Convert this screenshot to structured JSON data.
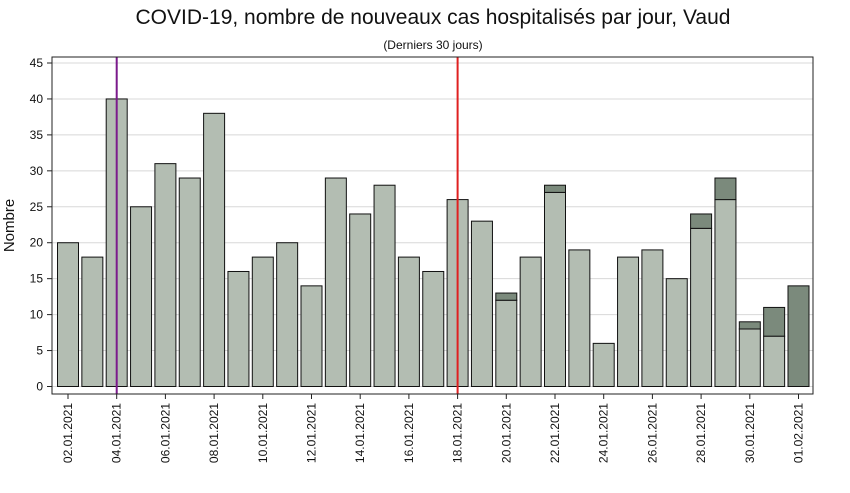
{
  "chart_data": {
    "type": "bar",
    "stacked": true,
    "title": "COVID-19, nombre de nouveaux cas hospitalisés par jour, Vaud",
    "subtitle": "(Derniers 30 jours)",
    "xlabel": "",
    "ylabel": "Nombre",
    "ylim": [
      0,
      45
    ],
    "yticks": [
      0,
      5,
      10,
      15,
      20,
      25,
      30,
      35,
      40,
      45
    ],
    "grid": true,
    "categories": [
      "02.01.2021",
      "03.01.2021",
      "04.01.2021",
      "05.01.2021",
      "06.01.2021",
      "07.01.2021",
      "08.01.2021",
      "09.01.2021",
      "10.01.2021",
      "11.01.2021",
      "12.01.2021",
      "13.01.2021",
      "14.01.2021",
      "15.01.2021",
      "16.01.2021",
      "17.01.2021",
      "18.01.2021",
      "19.01.2021",
      "20.01.2021",
      "21.01.2021",
      "22.01.2021",
      "23.01.2021",
      "24.01.2021",
      "25.01.2021",
      "26.01.2021",
      "27.01.2021",
      "28.01.2021",
      "29.01.2021",
      "30.01.2021",
      "31.01.2021",
      "01.02.2021"
    ],
    "x_tick_labels": [
      "02.01.2021",
      "04.01.2021",
      "06.01.2021",
      "08.01.2021",
      "10.01.2021",
      "12.01.2021",
      "14.01.2021",
      "16.01.2021",
      "18.01.2021",
      "20.01.2021",
      "22.01.2021",
      "24.01.2021",
      "26.01.2021",
      "28.01.2021",
      "30.01.2021",
      "01.02.2021"
    ],
    "series": [
      {
        "values": [
          20,
          18,
          40,
          25,
          31,
          29,
          38,
          16,
          18,
          20,
          14,
          29,
          24,
          28,
          18,
          16,
          26,
          23,
          12,
          18,
          27,
          19,
          6,
          18,
          19,
          15,
          22,
          26,
          8,
          7,
          0
        ]
      },
      {
        "values": [
          0,
          0,
          0,
          0,
          0,
          0,
          0,
          0,
          0,
          0,
          0,
          0,
          0,
          0,
          0,
          0,
          0,
          0,
          1,
          0,
          1,
          0,
          0,
          0,
          0,
          0,
          2,
          3,
          1,
          4,
          14
        ]
      }
    ],
    "vertical_lines": [
      {
        "x": "04.01.2021",
        "color": "#7b1a8c"
      },
      {
        "x": "18.01.2021",
        "color": "#e02020"
      }
    ],
    "colors": {
      "base": "#b3bdb2",
      "top": "#7b8a7c",
      "grid": "#d8d8d8"
    }
  }
}
